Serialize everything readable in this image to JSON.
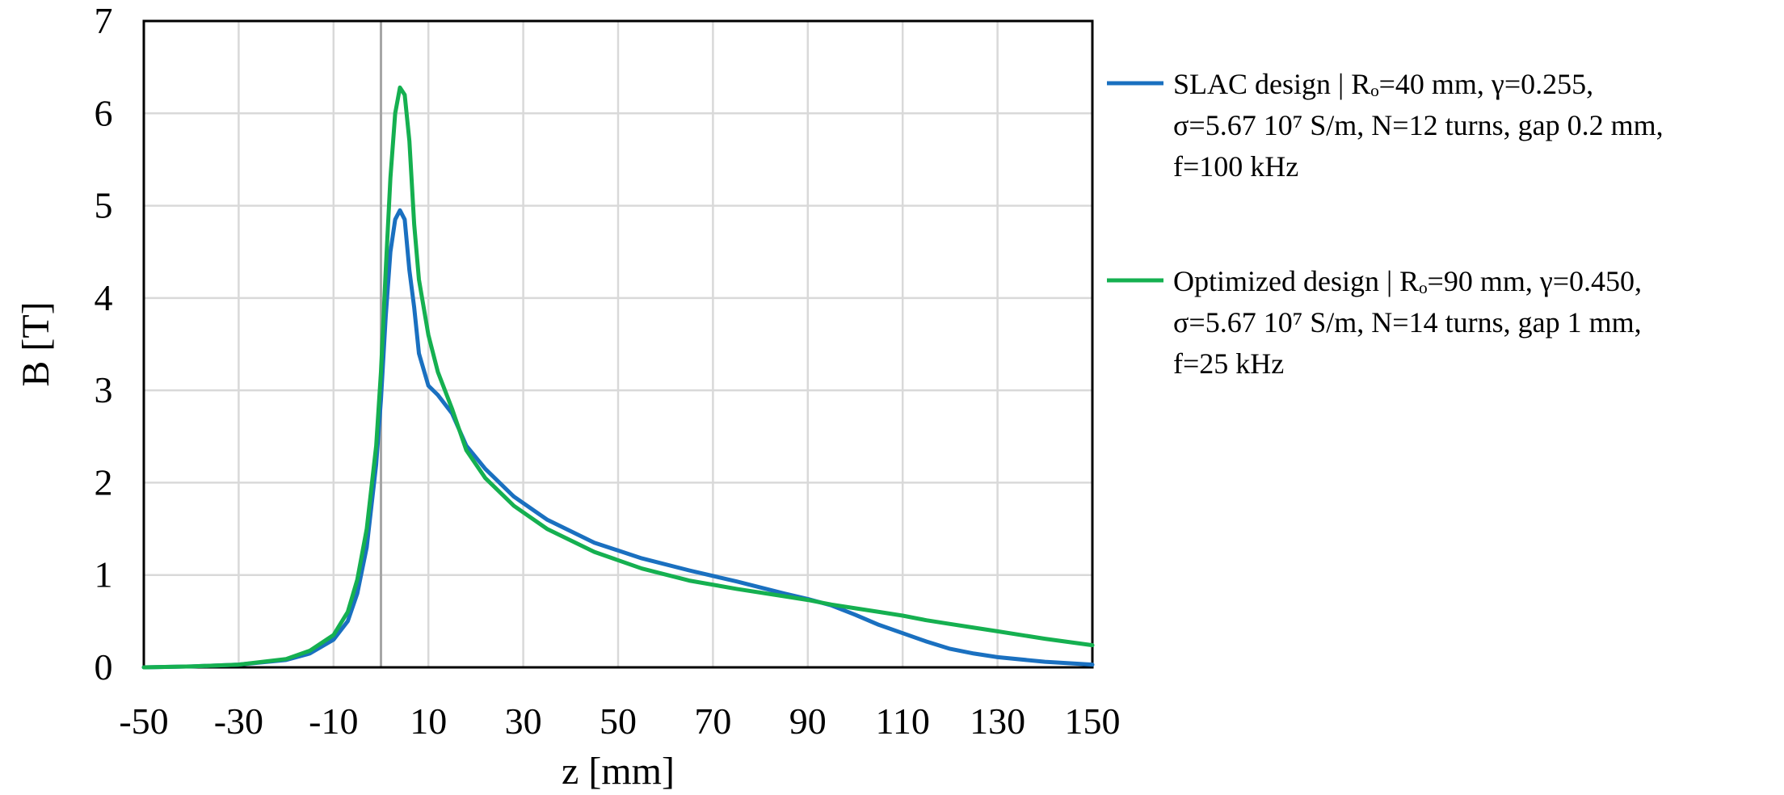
{
  "chart_data": {
    "type": "line",
    "xlabel": "z [mm]",
    "ylabel": "B [T]",
    "xlim": [
      -50,
      150
    ],
    "ylim": [
      0,
      7
    ],
    "x_ticks": [
      -50,
      -30,
      -10,
      10,
      30,
      50,
      70,
      90,
      110,
      130,
      150
    ],
    "y_ticks": [
      0,
      1,
      2,
      3,
      4,
      5,
      6,
      7
    ],
    "grid": true,
    "legend_position": "right",
    "series": [
      {
        "name": "SLAC design",
        "legend_lines": [
          "SLAC design | Rₒ=40 mm, γ=0.255,",
          "σ=5.67 10⁷ S/m, N=12 turns, gap 0.2 mm,",
          "f=100 kHz"
        ],
        "color": "#1a70c0",
        "x": [
          -50,
          -40,
          -30,
          -20,
          -15,
          -10,
          -7,
          -5,
          -3,
          -1,
          0,
          1,
          2,
          3,
          4,
          5,
          6,
          7,
          8,
          10,
          12,
          15,
          18,
          22,
          28,
          35,
          45,
          55,
          65,
          75,
          85,
          90,
          95,
          100,
          105,
          110,
          115,
          120,
          125,
          130,
          140,
          150
        ],
        "y": [
          0.0,
          0.01,
          0.03,
          0.08,
          0.15,
          0.3,
          0.5,
          0.8,
          1.3,
          2.2,
          2.9,
          3.8,
          4.5,
          4.85,
          4.95,
          4.85,
          4.3,
          3.9,
          3.4,
          3.05,
          2.95,
          2.75,
          2.4,
          2.15,
          1.85,
          1.6,
          1.35,
          1.18,
          1.05,
          0.93,
          0.8,
          0.74,
          0.67,
          0.57,
          0.46,
          0.37,
          0.28,
          0.2,
          0.15,
          0.11,
          0.06,
          0.03
        ]
      },
      {
        "name": "Optimized design",
        "legend_lines": [
          "Optimized design | Rₒ=90 mm, γ=0.450,",
          "σ=5.67 10⁷ S/m, N=14 turns, gap 1 mm,",
          "f=25 kHz"
        ],
        "color": "#15b050",
        "x": [
          -50,
          -40,
          -30,
          -20,
          -15,
          -10,
          -7,
          -5,
          -3,
          -1,
          0,
          1,
          2,
          3,
          4,
          5,
          6,
          7,
          8,
          10,
          12,
          15,
          18,
          22,
          28,
          35,
          45,
          55,
          65,
          75,
          85,
          90,
          95,
          100,
          105,
          110,
          115,
          120,
          125,
          130,
          140,
          150
        ],
        "y": [
          0.0,
          0.01,
          0.03,
          0.09,
          0.18,
          0.35,
          0.6,
          0.95,
          1.5,
          2.4,
          3.2,
          4.3,
          5.3,
          6.0,
          6.28,
          6.2,
          5.7,
          4.8,
          4.2,
          3.6,
          3.2,
          2.8,
          2.35,
          2.05,
          1.75,
          1.5,
          1.25,
          1.07,
          0.94,
          0.85,
          0.77,
          0.73,
          0.68,
          0.64,
          0.6,
          0.56,
          0.51,
          0.47,
          0.43,
          0.39,
          0.31,
          0.24
        ]
      }
    ]
  }
}
